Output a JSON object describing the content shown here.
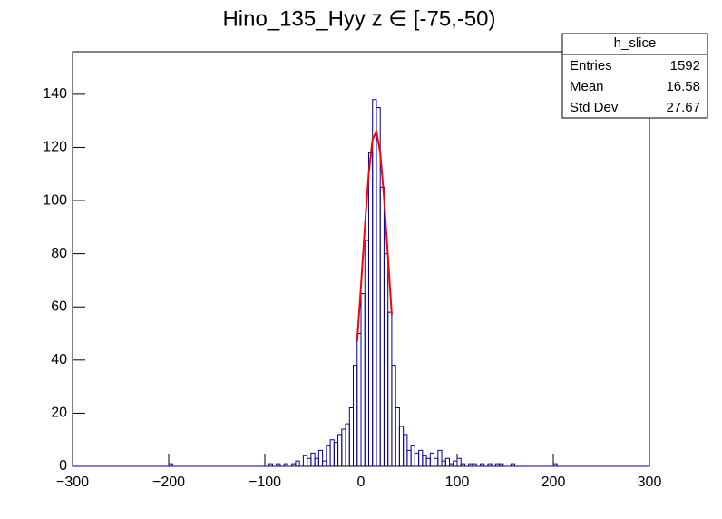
{
  "chart_data": {
    "type": "histogram",
    "title": "Hino_135_Hyy z  ∈ [-75,-50)",
    "bins": [
      -300,
      -296,
      -292,
      -288,
      -284,
      -280,
      -276,
      -272,
      -268,
      -264,
      -260,
      -256,
      -252,
      -248,
      -244,
      -240,
      -236,
      -232,
      -228,
      -224,
      -220,
      -216,
      -212,
      -208,
      -204,
      -200,
      -196,
      -192,
      -188,
      -184,
      -180,
      -176,
      -172,
      -168,
      -164,
      -160,
      -156,
      -152,
      -148,
      -144,
      -140,
      -136,
      -132,
      -128,
      -124,
      -120,
      -116,
      -112,
      -108,
      -104,
      -100,
      -96,
      -92,
      -88,
      -84,
      -80,
      -76,
      -72,
      -68,
      -64,
      -60,
      -56,
      -52,
      -48,
      -44,
      -40,
      -36,
      -32,
      -28,
      -24,
      -20,
      -16,
      -12,
      -8,
      -4,
      0,
      4,
      8,
      12,
      16,
      20,
      24,
      28,
      32,
      36,
      40,
      44,
      48,
      52,
      56,
      60,
      64,
      68,
      72,
      76,
      80,
      84,
      88,
      92,
      96,
      100,
      104,
      108,
      112,
      116,
      120,
      124,
      128,
      132,
      136,
      140,
      144,
      148,
      152,
      156,
      160,
      164,
      168,
      172,
      176,
      180,
      184,
      188,
      192,
      196,
      200,
      204,
      208,
      212,
      216,
      220,
      224,
      228,
      232,
      236,
      240,
      244,
      248,
      252,
      256,
      260,
      264,
      268,
      272,
      276,
      280,
      284,
      288,
      292,
      296,
      300
    ],
    "counts": [
      0,
      0,
      0,
      0,
      0,
      0,
      0,
      0,
      0,
      0,
      0,
      0,
      0,
      0,
      0,
      0,
      0,
      0,
      0,
      0,
      0,
      0,
      0,
      0,
      0,
      1,
      0,
      0,
      0,
      0,
      0,
      0,
      0,
      0,
      0,
      0,
      0,
      0,
      0,
      0,
      0,
      0,
      0,
      0,
      0,
      0,
      0,
      0,
      0,
      0,
      0,
      1,
      0,
      1,
      0,
      1,
      0,
      1,
      2,
      0,
      4,
      3,
      5,
      3,
      6,
      2,
      8,
      10,
      9,
      12,
      14,
      16,
      22,
      38,
      50,
      65,
      85,
      118,
      138,
      135,
      105,
      80,
      58,
      38,
      22,
      15,
      12,
      6,
      8,
      5,
      6,
      4,
      3,
      5,
      3,
      6,
      2,
      3,
      1,
      2,
      3,
      1,
      0,
      1,
      1,
      0,
      1,
      0,
      1,
      0,
      1,
      1,
      0,
      0,
      1,
      0,
      0,
      0,
      0,
      0,
      0,
      0,
      0,
      0,
      0,
      1,
      0,
      0,
      0,
      0,
      0,
      0,
      0,
      0,
      0,
      0,
      0,
      0,
      0,
      0,
      0,
      0,
      0,
      0,
      0,
      0,
      0,
      0,
      0,
      0
    ],
    "color": "#000099",
    "fit": {
      "color": "#ff0000",
      "x": [
        -4,
        0,
        4,
        8,
        12,
        16,
        20,
        24,
        28,
        32
      ],
      "values": [
        47,
        68,
        90,
        110,
        123,
        126,
        118,
        101,
        79,
        57
      ]
    },
    "xlim": [
      -300,
      300
    ],
    "xticks": [
      {
        "value": -300,
        "label": "−300"
      },
      {
        "value": -200,
        "label": "−200"
      },
      {
        "value": -100,
        "label": "−100"
      },
      0,
      100,
      200,
      300
    ],
    "ylim": [
      0,
      156
    ],
    "yticks": [
      0,
      20,
      40,
      60,
      80,
      100,
      120,
      140
    ],
    "stats": {
      "name": "h_slice",
      "rows": [
        [
          "Entries",
          "1592"
        ],
        [
          "Mean",
          "16.58"
        ],
        [
          "Std Dev",
          "27.67"
        ]
      ]
    }
  }
}
